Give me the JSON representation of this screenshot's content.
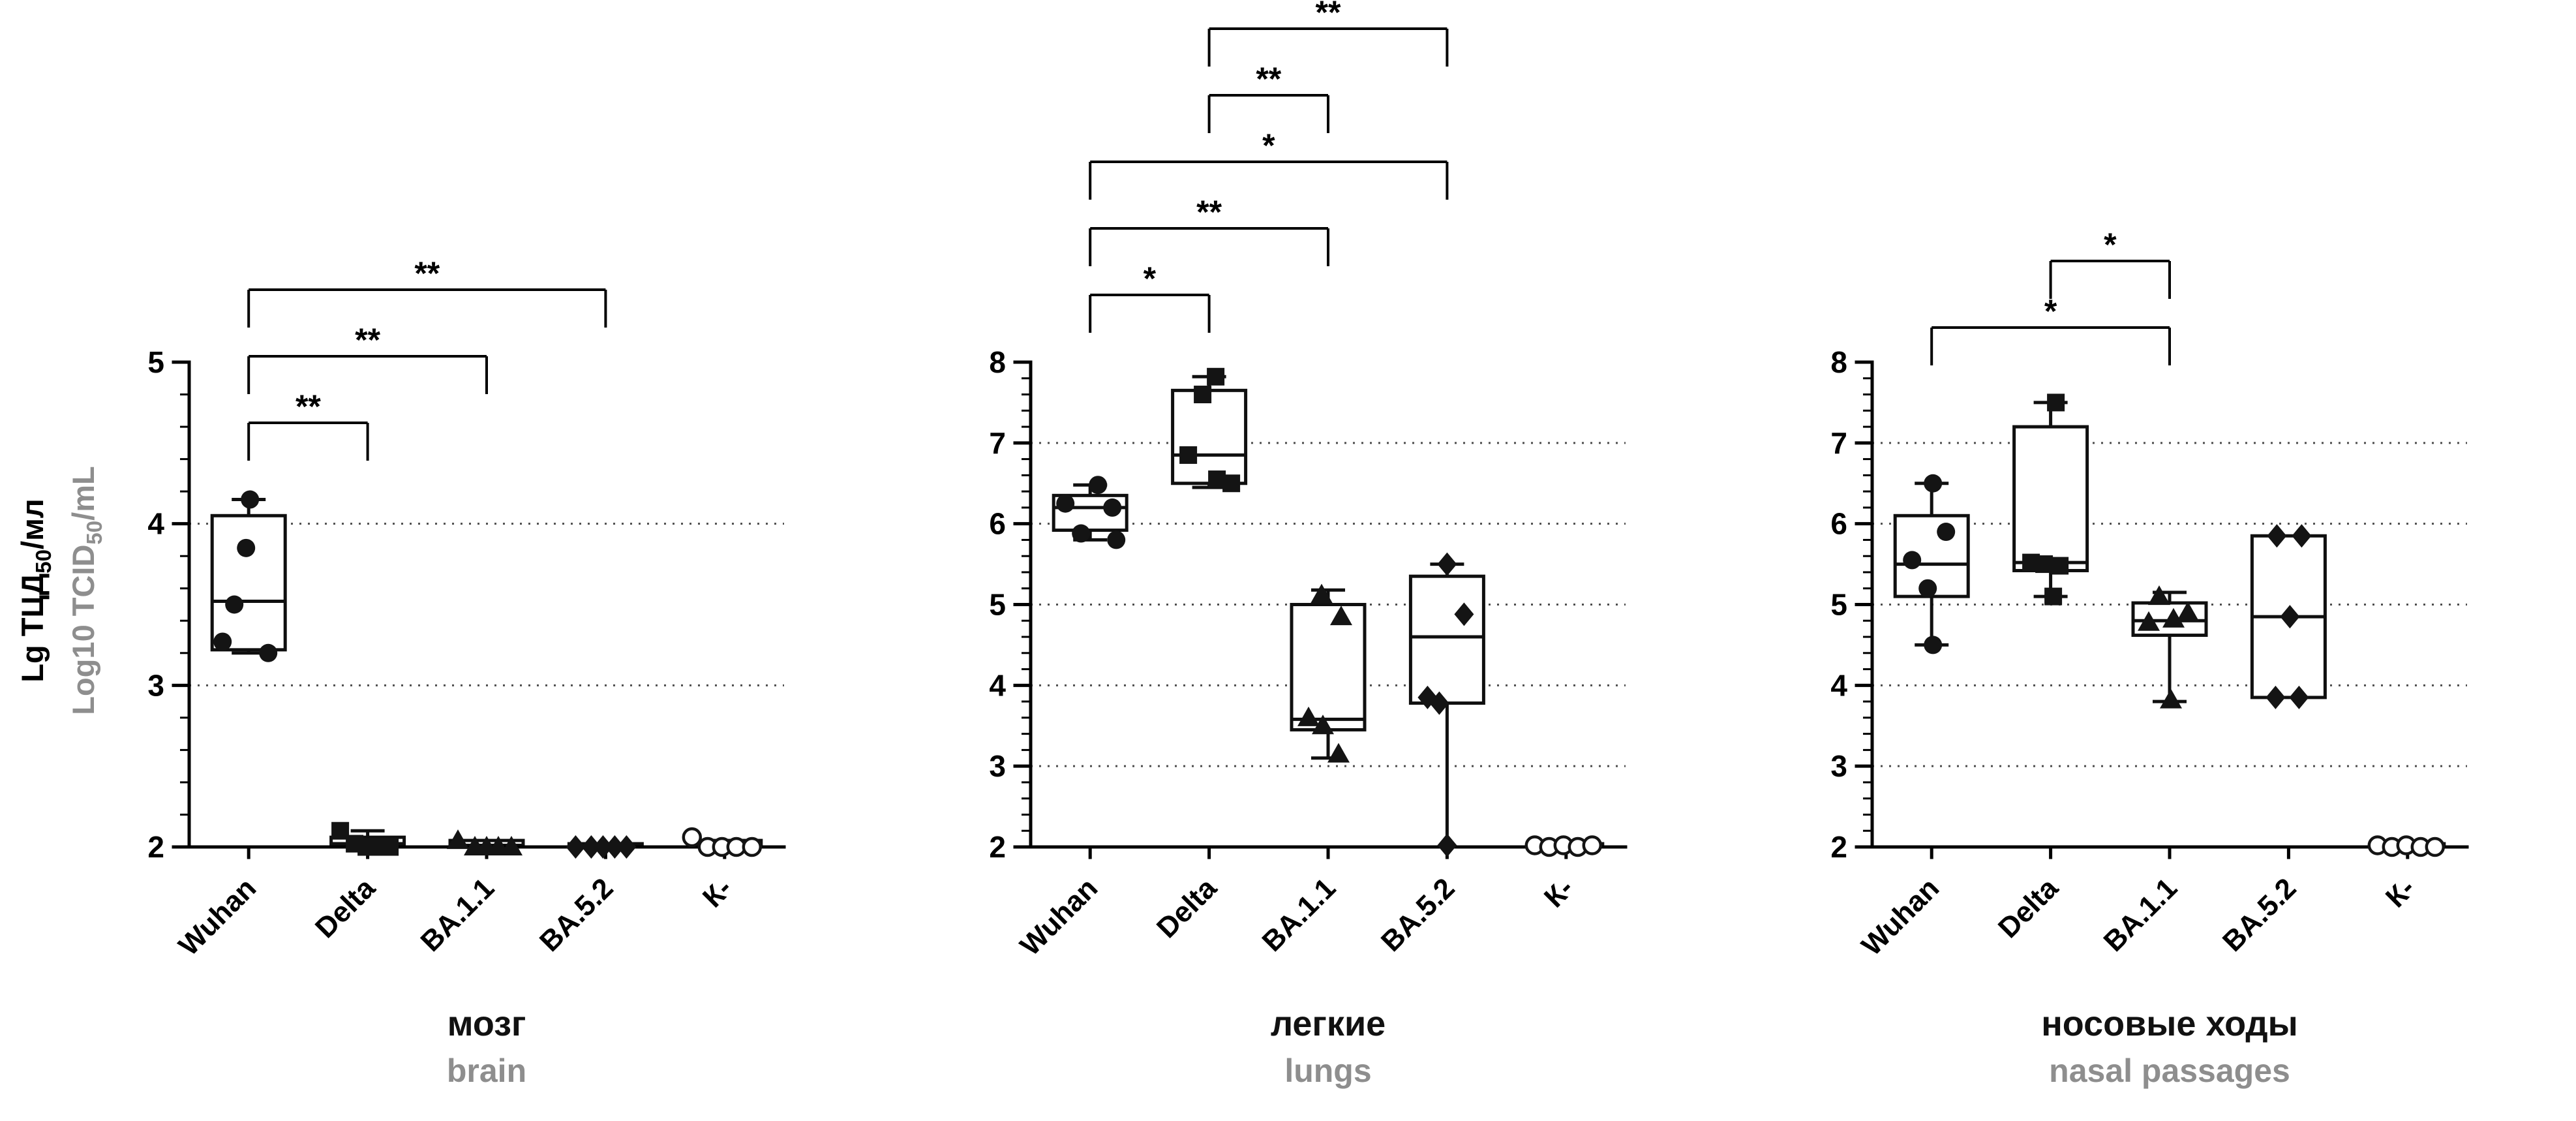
{
  "figure": {
    "y_axis_label_primary": {
      "pre": "Lg ТЦД",
      "sub": "50",
      "post": "/мл"
    },
    "y_axis_label_secondary": {
      "pre": "Log10 TCID",
      "sub": "50",
      "post": "/mL"
    },
    "colors": {
      "primary": "#111111",
      "secondary": "#8e8e8e",
      "grid": "#4d4d4d"
    }
  },
  "chart_data": [
    {
      "type": "box",
      "title": "мозг",
      "title_en": "brain",
      "ylim": [
        2,
        5
      ],
      "yticks": [
        2,
        3,
        4,
        5
      ],
      "gridlines": [
        3,
        4
      ],
      "minor_step": 0.2,
      "categories": [
        "Wuhan",
        "Delta",
        "BA.1.1",
        "BA.5.2",
        "К-"
      ],
      "markers": [
        "circle",
        "square",
        "triangle",
        "diamond",
        "open-circle"
      ],
      "boxes": [
        {
          "min": 3.2,
          "q1": 3.22,
          "median": 3.52,
          "q3": 4.05,
          "max": 4.15
        },
        {
          "min": 2.0,
          "q1": 2.0,
          "median": 2.02,
          "q3": 2.06,
          "max": 2.1
        },
        {
          "min": 2.0,
          "q1": 2.0,
          "median": 2.01,
          "q3": 2.04,
          "max": 2.04
        },
        {
          "min": 2.0,
          "q1": 2.0,
          "median": 2.0,
          "q3": 2.02,
          "max": 2.02
        },
        {
          "min": 2.0,
          "q1": 2.0,
          "median": 2.01,
          "q3": 2.04,
          "max": 2.04
        }
      ],
      "points": [
        [
          {
            "dx": 2,
            "v": 4.15
          },
          {
            "dx": -4,
            "v": 3.85
          },
          {
            "dx": -22,
            "v": 3.5
          },
          {
            "dx": -40,
            "v": 3.27
          },
          {
            "dx": 30,
            "v": 3.2
          }
        ],
        [
          {
            "dx": -42,
            "v": 2.1
          },
          {
            "dx": -20,
            "v": 2.02
          },
          {
            "dx": -2,
            "v": 2.0
          },
          {
            "dx": 16,
            "v": 2.0
          },
          {
            "dx": 34,
            "v": 2.0
          }
        ],
        [
          {
            "dx": -44,
            "v": 2.04
          },
          {
            "dx": -18,
            "v": 2.0
          },
          {
            "dx": 0,
            "v": 2.0
          },
          {
            "dx": 18,
            "v": 2.0
          },
          {
            "dx": 38,
            "v": 2.0
          }
        ],
        [
          {
            "dx": -46,
            "v": 2.0
          },
          {
            "dx": -22,
            "v": 2.0
          },
          {
            "dx": -4,
            "v": 2.0
          },
          {
            "dx": 14,
            "v": 2.0
          },
          {
            "dx": 32,
            "v": 2.0
          }
        ],
        [
          {
            "dx": -50,
            "v": 2.06
          },
          {
            "dx": -26,
            "v": 2.0
          },
          {
            "dx": -4,
            "v": 2.0
          },
          {
            "dx": 18,
            "v": 2.0
          },
          {
            "dx": 42,
            "v": 2.0
          }
        ]
      ],
      "significance": [
        {
          "from": 0,
          "to": 1,
          "label": "**",
          "row": 0
        },
        {
          "from": 0,
          "to": 2,
          "label": "**",
          "row": 1
        },
        {
          "from": 0,
          "to": 3,
          "label": "**",
          "row": 2
        }
      ]
    },
    {
      "type": "box",
      "title": "легкие",
      "title_en": "lungs",
      "ylim": [
        2,
        8
      ],
      "yticks": [
        2,
        3,
        4,
        5,
        6,
        7,
        8
      ],
      "gridlines": [
        3,
        4,
        5,
        6,
        7
      ],
      "minor_step": 0.2,
      "categories": [
        "Wuhan",
        "Delta",
        "BA.1.1",
        "BA.5.2",
        "К-"
      ],
      "markers": [
        "circle",
        "square",
        "triangle",
        "diamond",
        "open-circle"
      ],
      "boxes": [
        {
          "min": 5.8,
          "q1": 5.92,
          "median": 6.2,
          "q3": 6.35,
          "max": 6.48
        },
        {
          "min": 6.45,
          "q1": 6.5,
          "median": 6.85,
          "q3": 7.65,
          "max": 7.82
        },
        {
          "min": 3.1,
          "q1": 3.45,
          "median": 3.58,
          "q3": 5.0,
          "max": 5.18
        },
        {
          "min": 2.0,
          "q1": 3.78,
          "median": 4.6,
          "q3": 5.35,
          "max": 5.5
        },
        {
          "min": 2.0,
          "q1": 2.0,
          "median": 2.01,
          "q3": 2.04,
          "max": 2.04
        }
      ],
      "points": [
        [
          {
            "dx": 12,
            "v": 6.48
          },
          {
            "dx": -38,
            "v": 6.25
          },
          {
            "dx": 34,
            "v": 6.2
          },
          {
            "dx": -14,
            "v": 5.88
          },
          {
            "dx": 40,
            "v": 5.8
          }
        ],
        [
          {
            "dx": 10,
            "v": 7.82
          },
          {
            "dx": -10,
            "v": 7.6
          },
          {
            "dx": -32,
            "v": 6.85
          },
          {
            "dx": 12,
            "v": 6.55
          },
          {
            "dx": 34,
            "v": 6.5
          }
        ],
        [
          {
            "dx": -10,
            "v": 5.12
          },
          {
            "dx": 20,
            "v": 4.85
          },
          {
            "dx": -30,
            "v": 3.6
          },
          {
            "dx": -8,
            "v": 3.5
          },
          {
            "dx": 16,
            "v": 3.15
          }
        ],
        [
          {
            "dx": 0,
            "v": 5.5
          },
          {
            "dx": 26,
            "v": 4.88
          },
          {
            "dx": -30,
            "v": 3.85
          },
          {
            "dx": -12,
            "v": 3.78
          },
          {
            "dx": 0,
            "v": 2.02
          }
        ],
        [
          {
            "dx": -48,
            "v": 2.02
          },
          {
            "dx": -26,
            "v": 2.0
          },
          {
            "dx": -4,
            "v": 2.02
          },
          {
            "dx": 18,
            "v": 2.0
          },
          {
            "dx": 40,
            "v": 2.02
          }
        ]
      ],
      "significance": [
        {
          "from": 0,
          "to": 1,
          "label": "*",
          "row": 0
        },
        {
          "from": 0,
          "to": 2,
          "label": "**",
          "row": 1
        },
        {
          "from": 0,
          "to": 3,
          "label": "*",
          "row": 2
        },
        {
          "from": 1,
          "to": 2,
          "label": "**",
          "row": 3
        },
        {
          "from": 1,
          "to": 3,
          "label": "**",
          "row": 4
        }
      ]
    },
    {
      "type": "box",
      "title": "носовые ходы",
      "title_en": "nasal passages",
      "ylim": [
        2,
        8
      ],
      "yticks": [
        2,
        3,
        4,
        5,
        6,
        7,
        8
      ],
      "gridlines": [
        3,
        4,
        5,
        6,
        7
      ],
      "minor_step": 0.2,
      "categories": [
        "Wuhan",
        "Delta",
        "BA.1.1",
        "BA.5.2",
        "К-"
      ],
      "markers": [
        "circle",
        "square",
        "triangle",
        "diamond",
        "open-circle"
      ],
      "boxes": [
        {
          "min": 4.5,
          "q1": 5.1,
          "median": 5.5,
          "q3": 6.1,
          "max": 6.5
        },
        {
          "min": 5.1,
          "q1": 5.42,
          "median": 5.52,
          "q3": 7.2,
          "max": 7.5
        },
        {
          "min": 3.8,
          "q1": 4.62,
          "median": 4.8,
          "q3": 5.02,
          "max": 5.15
        },
        {
          "min": 3.85,
          "q1": 3.85,
          "median": 4.85,
          "q3": 5.85,
          "max": 5.85
        },
        {
          "min": 2.0,
          "q1": 2.0,
          "median": 2.01,
          "q3": 2.04,
          "max": 2.04
        }
      ],
      "points": [
        [
          {
            "dx": 2,
            "v": 6.5
          },
          {
            "dx": 22,
            "v": 5.9
          },
          {
            "dx": -30,
            "v": 5.55
          },
          {
            "dx": -6,
            "v": 5.2
          },
          {
            "dx": 2,
            "v": 4.5
          }
        ],
        [
          {
            "dx": 8,
            "v": 7.5
          },
          {
            "dx": -30,
            "v": 5.52
          },
          {
            "dx": -10,
            "v": 5.5
          },
          {
            "dx": 14,
            "v": 5.48
          },
          {
            "dx": 4,
            "v": 5.1
          }
        ],
        [
          {
            "dx": -16,
            "v": 5.1
          },
          {
            "dx": 28,
            "v": 4.9
          },
          {
            "dx": 6,
            "v": 4.82
          },
          {
            "dx": -32,
            "v": 4.78
          },
          {
            "dx": 2,
            "v": 3.82
          }
        ],
        [
          {
            "dx": -18,
            "v": 5.85
          },
          {
            "dx": 20,
            "v": 5.85
          },
          {
            "dx": 2,
            "v": 4.85
          },
          {
            "dx": -20,
            "v": 3.85
          },
          {
            "dx": 16,
            "v": 3.85
          }
        ],
        [
          {
            "dx": -46,
            "v": 2.02
          },
          {
            "dx": -24,
            "v": 2.0
          },
          {
            "dx": -2,
            "v": 2.02
          },
          {
            "dx": 20,
            "v": 2.0
          },
          {
            "dx": 42,
            "v": 2.0
          }
        ]
      ],
      "significance": [
        {
          "from": 0,
          "to": 2,
          "label": "*",
          "row": 0
        },
        {
          "from": 1,
          "to": 2,
          "label": "*",
          "row": 1
        }
      ]
    }
  ]
}
